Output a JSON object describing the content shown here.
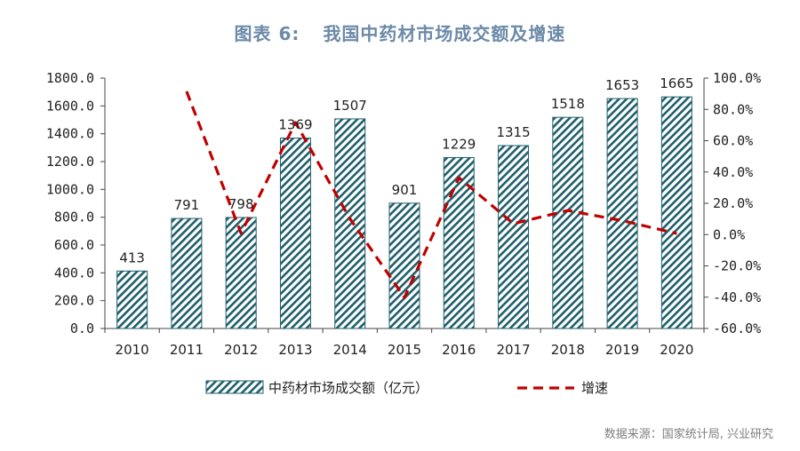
{
  "figure": {
    "label": "图表 6:",
    "title": "我国中药材市场成交额及增速",
    "source": "数据来源：国家统计局, 兴业研究"
  },
  "chart_data": {
    "type": "bar+line",
    "categories": [
      "2010",
      "2011",
      "2012",
      "2013",
      "2014",
      "2015",
      "2016",
      "2017",
      "2018",
      "2019",
      "2020"
    ],
    "series": [
      {
        "name": "中药材市场成交额（亿元）",
        "type": "bar",
        "axis": "left",
        "values": [
          413,
          791,
          798,
          1369,
          1507,
          901,
          1229,
          1315,
          1518,
          1653,
          1665
        ],
        "labels": [
          "413",
          "791",
          "798",
          "1369",
          "1507",
          "901",
          "1229",
          "1315",
          "1518",
          "1653",
          "1665"
        ],
        "color": "#1f5f6b",
        "pattern": "diagonal-hatch"
      },
      {
        "name": "增速",
        "type": "line",
        "axis": "right",
        "style": "dashed",
        "color": "#c00000",
        "values": [
          null,
          91.5,
          0.9,
          71.6,
          10.1,
          -40.2,
          36.4,
          7.0,
          15.4,
          8.9,
          0.7
        ]
      }
    ],
    "yleft": {
      "min": 0,
      "max": 1800,
      "step": 200,
      "ticks": [
        "0.0",
        "200.0",
        "400.0",
        "600.0",
        "800.0",
        "1000.0",
        "1200.0",
        "1400.0",
        "1600.0",
        "1800.0"
      ]
    },
    "yright": {
      "min": -60,
      "max": 100,
      "step": 20,
      "ticks": [
        "-60.0%",
        "-40.0%",
        "-20.0%",
        "0.0%",
        "20.0%",
        "40.0%",
        "60.0%",
        "80.0%",
        "100.0%"
      ]
    },
    "legend": {
      "position": "bottom",
      "items": [
        "中药材市场成交额（亿元）",
        "增速"
      ]
    }
  }
}
